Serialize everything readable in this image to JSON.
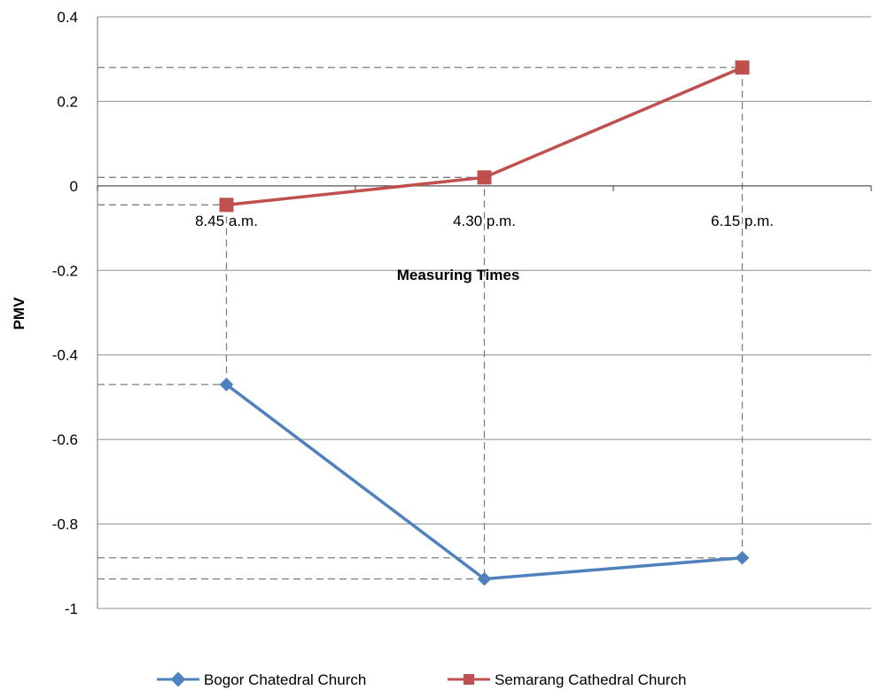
{
  "chart_data": {
    "type": "line",
    "xlabel": "Measuring Times",
    "ylabel": "PMV",
    "categories": [
      "8.45 a.m.",
      "4.30 p.m.",
      "6.15 p.m."
    ],
    "ylim": [
      -1,
      0.4
    ],
    "yticks": [
      "0.4",
      "0.2",
      "0",
      "-0.2",
      "-0.4",
      "-0.6",
      "-0.8",
      "-1"
    ],
    "grid": true,
    "legend_position": "bottom",
    "series": [
      {
        "name": "Bogor Chatedral Church",
        "values": [
          -0.47,
          -0.93,
          -0.88
        ],
        "color": "#4F81BD",
        "marker": "diamond"
      },
      {
        "name": "Semarang Cathedral Church",
        "values": [
          -0.045,
          0.02,
          0.28
        ],
        "color": "#C0504D",
        "marker": "square"
      }
    ],
    "reference_lines": "dashed"
  }
}
